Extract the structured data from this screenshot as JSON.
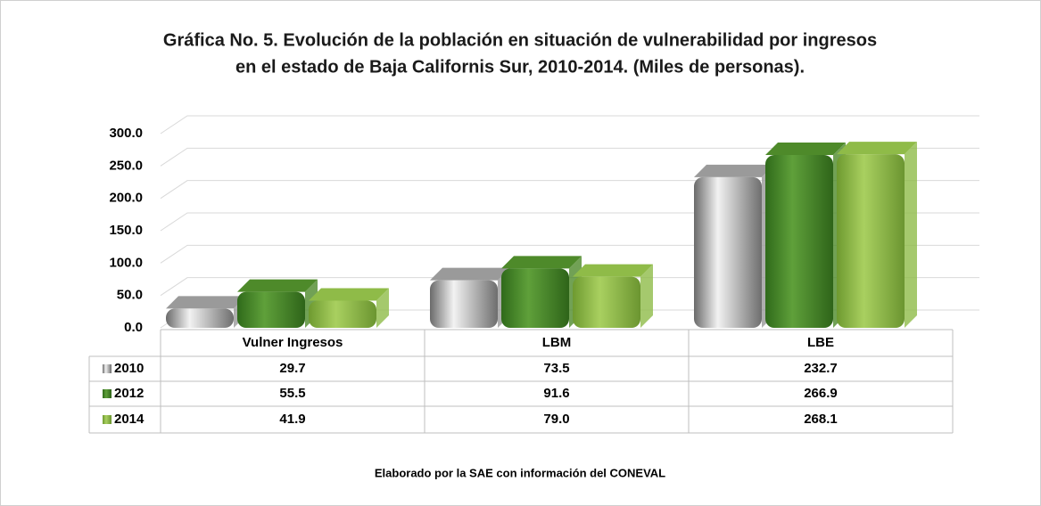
{
  "chart_data": {
    "type": "bar3d",
    "title": [
      "Gráfica No. 5. Evolución de la población en situación de vulnerabilidad por ingresos",
      "en el estado de Baja Californis Sur, 2010-2014. (Miles de personas)."
    ],
    "categories": [
      "Vulner Ingresos",
      "LBM",
      "LBE"
    ],
    "series": [
      {
        "name": "2010",
        "color": "#9a9a9a",
        "values": [
          29.7,
          73.5,
          232.7
        ],
        "value_labels": [
          "29.7",
          "73.5",
          "232.7"
        ]
      },
      {
        "name": "2012",
        "color": "#4e8a2a",
        "values": [
          55.5,
          91.6,
          266.9
        ],
        "value_labels": [
          "55.5",
          "91.6",
          "266.9"
        ]
      },
      {
        "name": "2014",
        "color": "#8fbb48",
        "values": [
          41.9,
          79.0,
          268.1
        ],
        "value_labels": [
          "41.9",
          "79.0",
          "268.1"
        ]
      }
    ],
    "ylim": [
      0,
      300
    ],
    "yticks": [
      {
        "value": 0,
        "label": "0.0"
      },
      {
        "value": 50,
        "label": "50.0"
      },
      {
        "value": 100,
        "label": "100.0"
      },
      {
        "value": 150,
        "label": "150.0"
      },
      {
        "value": 200,
        "label": "200.0"
      },
      {
        "value": 250,
        "label": "250.0"
      },
      {
        "value": 300,
        "label": "300.0"
      }
    ],
    "grid": true,
    "source": "Elaborado por la SAE con información del CONEVAL"
  }
}
